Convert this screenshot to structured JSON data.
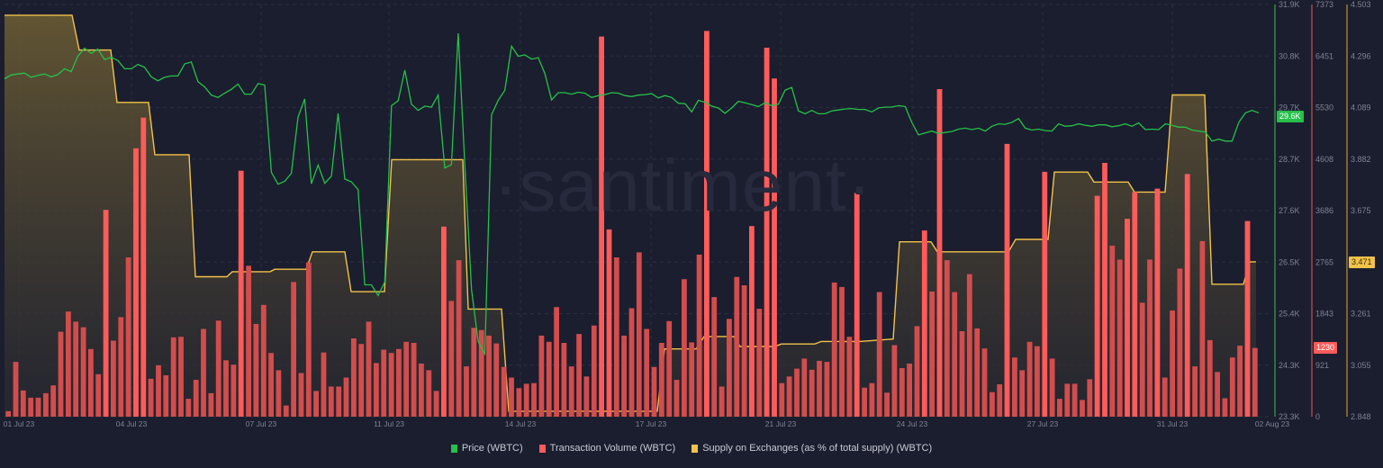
{
  "chart_data": {
    "type": "bar+line",
    "title": "",
    "watermark": "·santiment·",
    "x_axis": {
      "tick_labels": [
        "01 Jul 23",
        "04 Jul 23",
        "07 Jul 23",
        "11 Jul 23",
        "14 Jul 23",
        "17 Jul 23",
        "21 Jul 23",
        "24 Jul 23",
        "27 Jul 23",
        "31 Jul 23",
        "02 Aug 23"
      ],
      "tick_x": [
        21,
        146,
        290,
        432,
        578,
        723,
        867,
        1013,
        1158,
        1302,
        1413
      ]
    },
    "y_axes": [
      {
        "name": "Price (WBTC)",
        "color": "#26c04a",
        "ticks": [
          "31.9K",
          "30.8K",
          "29.7K",
          "28.7K",
          "27.6K",
          "26.5K",
          "25.4K",
          "24.3K",
          "23.3K"
        ],
        "range": [
          23300,
          31900
        ],
        "current": "29.6K"
      },
      {
        "name": "Transaction Volume (WBTC)",
        "color": "#ff5b5b",
        "ticks": [
          "7373",
          "6451",
          "5530",
          "4608",
          "3686",
          "2765",
          "1843",
          "921",
          "0"
        ],
        "range": [
          0,
          7373
        ],
        "current": "1230"
      },
      {
        "name": "Supply on Exchanges (as % of total supply) (WBTC)",
        "color": "#f2c24a",
        "ticks": [
          "4.503",
          "4.296",
          "4.089",
          "3.882",
          "3.675",
          "3.471",
          "3.261",
          "3.055",
          "2.848"
        ],
        "range": [
          2.848,
          4.503
        ],
        "current": "3.471"
      }
    ],
    "series": [
      {
        "name": "Transaction Volume (WBTC)",
        "type": "bar",
        "color": "#d9534f",
        "values": [
          100,
          980,
          470,
          340,
          340,
          420,
          560,
          1520,
          1880,
          1700,
          1600,
          1210,
          760,
          3700,
          1360,
          1780,
          2850,
          4800,
          5350,
          680,
          920,
          740,
          1420,
          1430,
          320,
          660,
          1570,
          420,
          1720,
          1010,
          930,
          4400,
          2700,
          1660,
          2000,
          1140,
          830,
          200,
          2410,
          780,
          2760,
          460,
          1150,
          540,
          540,
          700,
          1400,
          1300,
          1700,
          960,
          1200,
          1140,
          1210,
          1340,
          1320,
          950,
          830,
          460,
          3400,
          2070,
          2800,
          900,
          1590,
          1550,
          1450,
          1310,
          890,
          700,
          510,
          590,
          600,
          1450,
          1340,
          1960,
          1320,
          900,
          1480,
          720,
          1630,
          6800,
          3350,
          2850,
          1450,
          1940,
          2940,
          1570,
          890,
          1320,
          1710,
          660,
          2460,
          1330,
          2900,
          6900,
          2140,
          540,
          1750,
          2500,
          2350,
          3410,
          1930,
          6600,
          6050,
          600,
          720,
          860,
          1040,
          840,
          1000,
          980,
          2400,
          2320,
          1430,
          4000,
          520,
          600,
          2230,
          430,
          1280,
          870,
          950,
          1620,
          3330,
          2240,
          5860,
          2800,
          2230,
          1530,
          2550,
          1580,
          1220,
          440,
          580,
          4880,
          1060,
          830,
          1340,
          1260,
          4380,
          1040,
          320,
          590,
          590,
          300,
          670,
          3950,
          4540,
          3060,
          2810,
          3540,
          4020,
          2040,
          2810,
          4080,
          700,
          1900,
          2650,
          4340,
          900,
          3140,
          1370,
          800,
          330,
          1060,
          1270,
          3500,
          1230
        ]
      },
      {
        "name": "Price (WBTC)",
        "type": "line",
        "color": "#26c04a",
        "values": [
          30350,
          30430,
          30450,
          30470,
          30380,
          30420,
          30450,
          30390,
          30440,
          30560,
          30500,
          30820,
          30990,
          30880,
          30970,
          30750,
          30800,
          30730,
          30560,
          30560,
          30650,
          30590,
          30390,
          30310,
          30380,
          30410,
          30410,
          30660,
          30700,
          30290,
          30180,
          30010,
          29960,
          30050,
          30130,
          30240,
          30030,
          30030,
          30250,
          30220,
          28400,
          28150,
          28210,
          28380,
          29550,
          29930,
          28160,
          28550,
          28170,
          28320,
          29630,
          28260,
          28200,
          28040,
          26050,
          26050,
          25830,
          26110,
          29790,
          29890,
          30530,
          29820,
          29690,
          29780,
          29760,
          30010,
          28490,
          28560,
          31300,
          28540,
          25950,
          24870,
          24610,
          29600,
          29900,
          30110,
          31030,
          30820,
          30850,
          30760,
          30790,
          30460,
          29910,
          30060,
          30060,
          30030,
          30070,
          30050,
          29960,
          30000,
          30020,
          30060,
          30050,
          30000,
          29980,
          30010,
          30020,
          30040,
          29950,
          30000,
          29960,
          29840,
          29830,
          29660,
          29900,
          29860,
          29780,
          29740,
          29630,
          29740,
          29880,
          29850,
          29810,
          29770,
          29850,
          29790,
          29820,
          30110,
          30170,
          29680,
          29620,
          29690,
          29620,
          29620,
          29680,
          29700,
          29720,
          29730,
          29710,
          29710,
          29660,
          29740,
          29760,
          29760,
          29790,
          29770,
          29440,
          29180,
          29220,
          29260,
          29210,
          29230,
          29250,
          29300,
          29320,
          29290,
          29320,
          29260,
          29360,
          29410,
          29400,
          29440,
          29520,
          29320,
          29280,
          29300,
          29270,
          29260,
          29410,
          29360,
          29370,
          29410,
          29380,
          29360,
          29390,
          29390,
          29350,
          29370,
          29410,
          29360,
          29430,
          29290,
          29300,
          29290,
          29410,
          29380,
          29340,
          29340,
          29280,
          29260,
          29240,
          29050,
          29090,
          29050,
          29050,
          29440,
          29640,
          29690,
          29640
        ]
      },
      {
        "name": "Supply on Exchanges (as % of total supply) (WBTC)",
        "type": "area-line",
        "color": "#f2c24a",
        "points": [
          [
            5,
            4.46
          ],
          [
            80,
            4.46
          ],
          [
            88,
            4.32
          ],
          [
            123,
            4.32
          ],
          [
            130,
            4.11
          ],
          [
            165,
            4.11
          ],
          [
            172,
            3.9
          ],
          [
            210,
            3.9
          ],
          [
            217,
            3.41
          ],
          [
            252,
            3.41
          ],
          [
            258,
            3.43
          ],
          [
            300,
            3.43
          ],
          [
            305,
            3.44
          ],
          [
            340,
            3.44
          ],
          [
            347,
            3.51
          ],
          [
            383,
            3.51
          ],
          [
            390,
            3.35
          ],
          [
            427,
            3.35
          ],
          [
            435,
            3.88
          ],
          [
            514,
            3.88
          ],
          [
            520,
            3.28
          ],
          [
            557,
            3.28
          ],
          [
            565,
            2.87
          ],
          [
            730,
            2.87
          ],
          [
            738,
            3.12
          ],
          [
            773,
            3.12
          ],
          [
            782,
            3.17
          ],
          [
            815,
            3.17
          ],
          [
            822,
            3.13
          ],
          [
            860,
            3.13
          ],
          [
            868,
            3.14
          ],
          [
            905,
            3.14
          ],
          [
            912,
            3.15
          ],
          [
            948,
            3.15
          ],
          [
            955,
            3.15
          ],
          [
            992,
            3.16
          ],
          [
            999,
            3.55
          ],
          [
            1034,
            3.55
          ],
          [
            1041,
            3.51
          ],
          [
            1120,
            3.51
          ],
          [
            1128,
            3.56
          ],
          [
            1164,
            3.56
          ],
          [
            1171,
            3.83
          ],
          [
            1208,
            3.83
          ],
          [
            1215,
            3.79
          ],
          [
            1253,
            3.79
          ],
          [
            1260,
            3.75
          ],
          [
            1294,
            3.75
          ],
          [
            1302,
            4.14
          ],
          [
            1338,
            4.14
          ],
          [
            1346,
            3.38
          ],
          [
            1381,
            3.38
          ],
          [
            1388,
            3.47
          ],
          [
            1395,
            3.47
          ]
        ]
      }
    ],
    "legend_position": "bottom-center",
    "grid": true
  },
  "legend": {
    "items": [
      {
        "label": "Price (WBTC)",
        "color": "#26c04a"
      },
      {
        "label": "Transaction Volume (WBTC)",
        "color": "#ff5b5b"
      },
      {
        "label": "Supply on Exchanges (as % of total supply) (WBTC)",
        "color": "#f2c24a"
      }
    ]
  },
  "badges": {
    "price": "29.6K",
    "volume": "1230",
    "supply": "3.471"
  }
}
